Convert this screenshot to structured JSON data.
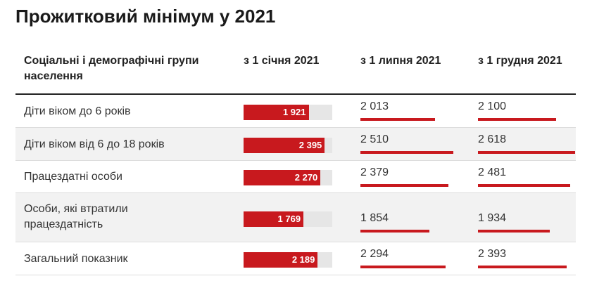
{
  "title": "Прожитковий мінімум у 2021",
  "table": {
    "headers": {
      "group": "Соціальні і демографічні групи населення",
      "jan": "з 1 січня 2021",
      "jul": "з 1 липня 2021",
      "dec": "з 1 грудня 2021"
    },
    "rows": [
      {
        "label": "Діти віком до 6 років",
        "jan": "1 921",
        "jul": "2 013",
        "dec": "2 100"
      },
      {
        "label": "Діти віком від 6 до 18 років",
        "jan": "2 395",
        "jul": "2 510",
        "dec": "2 618"
      },
      {
        "label": "Працездатні особи",
        "jan": "2 270",
        "jul": "2 379",
        "dec": "2 481"
      },
      {
        "label": "Особи, які втратили працездатність",
        "jan": "1 769",
        "jul": "1 854",
        "dec": "1 934"
      },
      {
        "label": "Загальний показник",
        "jan": "2 189",
        "jul": "2 294",
        "dec": "2 393"
      }
    ]
  },
  "colors": {
    "bar": "#c8191e",
    "track": "#e6e6e6",
    "stripe": "#f2f2f2"
  },
  "chart_data": {
    "type": "bar",
    "title": "Прожитковий мінімум у 2021",
    "categories": [
      "Діти віком до 6 років",
      "Діти віком від 6 до 18 років",
      "Працездатні особи",
      "Особи, які втратили працездатність",
      "Загальний показник"
    ],
    "series": [
      {
        "name": "з 1 січня 2021",
        "values": [
          1921,
          2395,
          2270,
          1769,
          2189
        ]
      },
      {
        "name": "з 1 липня 2021",
        "values": [
          2013,
          2510,
          2379,
          1854,
          2294
        ]
      },
      {
        "name": "з 1 грудня 2021",
        "values": [
          2100,
          2618,
          2481,
          1934,
          2393
        ]
      }
    ],
    "xlim": [
      0,
      2618
    ]
  }
}
